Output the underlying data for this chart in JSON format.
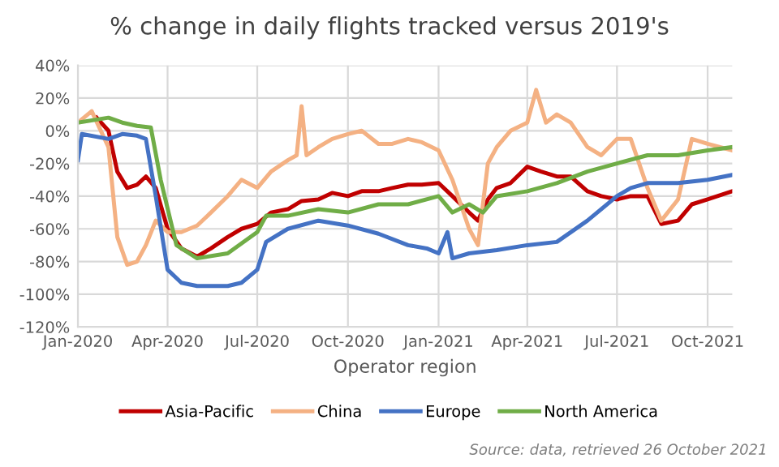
{
  "chart_data": {
    "type": "line",
    "title": "% change in daily flights tracked versus 2019's",
    "xlabel": "Operator region",
    "annotations": [
      "Source: data, retrieved 26 October 2021"
    ],
    "xlim": [
      "2020-01-01",
      "2021-10-26"
    ],
    "xticks": [
      {
        "value": "2020-01-01",
        "label": "Jan-2020"
      },
      {
        "value": "2020-04-01",
        "label": "Apr-2020"
      },
      {
        "value": "2020-07-01",
        "label": "Jul-2020"
      },
      {
        "value": "2020-10-01",
        "label": "Oct-2020"
      },
      {
        "value": "2021-01-01",
        "label": "Jan-2021"
      },
      {
        "value": "2021-04-01",
        "label": "Apr-2021"
      },
      {
        "value": "2021-07-01",
        "label": "Jul-2021"
      },
      {
        "value": "2021-10-01",
        "label": "Oct-2021"
      }
    ],
    "ylim": [
      -120,
      40
    ],
    "yticks": [
      {
        "value": 40,
        "label": "40%"
      },
      {
        "value": 20,
        "label": "20%"
      },
      {
        "value": 0,
        "label": "0%"
      },
      {
        "value": -20,
        "label": "-20%"
      },
      {
        "value": -40,
        "label": "-40%"
      },
      {
        "value": -60,
        "label": "-60%"
      },
      {
        "value": -80,
        "label": "-80%"
      },
      {
        "value": -100,
        "label": "-100%"
      },
      {
        "value": -120,
        "label": "-120%"
      }
    ],
    "grid": true,
    "legend": "bottom",
    "marker": "none",
    "line_style": "solid",
    "series": [
      {
        "name": "Asia-Pacific",
        "color": "#c00000",
        "x": [
          "2020-01-20",
          "2020-02-01",
          "2020-02-10",
          "2020-02-20",
          "2020-03-01",
          "2020-03-10",
          "2020-03-20",
          "2020-04-01",
          "2020-04-15",
          "2020-05-01",
          "2020-05-15",
          "2020-06-01",
          "2020-06-15",
          "2020-07-01",
          "2020-07-15",
          "2020-08-01",
          "2020-08-15",
          "2020-09-01",
          "2020-09-15",
          "2020-10-01",
          "2020-10-15",
          "2020-11-01",
          "2020-11-15",
          "2020-12-01",
          "2020-12-15",
          "2021-01-01",
          "2021-01-15",
          "2021-02-01",
          "2021-02-10",
          "2021-02-20",
          "2021-03-01",
          "2021-03-15",
          "2021-04-01",
          "2021-04-15",
          "2021-05-01",
          "2021-05-15",
          "2021-06-01",
          "2021-06-15",
          "2021-07-01",
          "2021-07-15",
          "2021-08-01",
          "2021-08-15",
          "2021-09-01",
          "2021-09-15",
          "2021-10-01",
          "2021-10-26"
        ],
        "values": [
          8,
          0,
          -25,
          -35,
          -33,
          -28,
          -35,
          -60,
          -72,
          -77,
          -72,
          -65,
          -60,
          -57,
          -50,
          -48,
          -43,
          -42,
          -38,
          -40,
          -37,
          -37,
          -35,
          -33,
          -33,
          -32,
          -40,
          -50,
          -55,
          -42,
          -35,
          -32,
          -22,
          -25,
          -28,
          -28,
          -37,
          -40,
          -42,
          -40,
          -40,
          -57,
          -55,
          -45,
          -42,
          -37
        ]
      },
      {
        "name": "China",
        "color": "#f4b183",
        "x": [
          "2020-01-01",
          "2020-01-15",
          "2020-02-01",
          "2020-02-10",
          "2020-02-20",
          "2020-03-01",
          "2020-03-10",
          "2020-03-20",
          "2020-04-01",
          "2020-04-15",
          "2020-05-01",
          "2020-05-15",
          "2020-06-01",
          "2020-06-15",
          "2020-07-01",
          "2020-07-15",
          "2020-08-01",
          "2020-08-10",
          "2020-08-15",
          "2020-08-20",
          "2020-09-01",
          "2020-09-15",
          "2020-10-01",
          "2020-10-15",
          "2020-11-01",
          "2020-11-15",
          "2020-12-01",
          "2020-12-15",
          "2021-01-01",
          "2021-01-15",
          "2021-02-01",
          "2021-02-10",
          "2021-02-20",
          "2021-03-01",
          "2021-03-15",
          "2021-04-01",
          "2021-04-10",
          "2021-04-20",
          "2021-05-01",
          "2021-05-15",
          "2021-06-01",
          "2021-06-15",
          "2021-07-01",
          "2021-07-15",
          "2021-08-01",
          "2021-08-15",
          "2021-09-01",
          "2021-09-15",
          "2021-10-01",
          "2021-10-26"
        ],
        "values": [
          5,
          12,
          -10,
          -65,
          -82,
          -80,
          -70,
          -55,
          -62,
          -62,
          -58,
          -50,
          -40,
          -30,
          -35,
          -25,
          -18,
          -15,
          15,
          -15,
          -10,
          -5,
          -2,
          0,
          -8,
          -8,
          -5,
          -7,
          -12,
          -30,
          -60,
          -70,
          -20,
          -10,
          0,
          5,
          25,
          5,
          10,
          5,
          -10,
          -15,
          -5,
          -5,
          -35,
          -55,
          -42,
          -5,
          -8,
          -12
        ]
      },
      {
        "name": "Europe",
        "color": "#4472c4",
        "x": [
          "2020-01-01",
          "2020-01-05",
          "2020-02-01",
          "2020-02-15",
          "2020-03-01",
          "2020-03-10",
          "2020-03-20",
          "2020-04-01",
          "2020-04-15",
          "2020-05-01",
          "2020-06-01",
          "2020-06-15",
          "2020-07-01",
          "2020-07-10",
          "2020-08-01",
          "2020-09-01",
          "2020-10-01",
          "2020-11-01",
          "2020-12-01",
          "2020-12-20",
          "2021-01-01",
          "2021-01-10",
          "2021-01-15",
          "2021-02-01",
          "2021-03-01",
          "2021-04-01",
          "2021-05-01",
          "2021-06-01",
          "2021-07-01",
          "2021-07-15",
          "2021-08-01",
          "2021-09-01",
          "2021-10-01",
          "2021-10-26"
        ],
        "values": [
          -18,
          -2,
          -5,
          -2,
          -3,
          -5,
          -40,
          -85,
          -93,
          -95,
          -95,
          -93,
          -85,
          -68,
          -60,
          -55,
          -58,
          -63,
          -70,
          -72,
          -75,
          -62,
          -78,
          -75,
          -73,
          -70,
          -68,
          -55,
          -40,
          -35,
          -32,
          -32,
          -30,
          -27
        ]
      },
      {
        "name": "North America",
        "color": "#70ad47",
        "x": [
          "2020-01-01",
          "2020-02-01",
          "2020-02-15",
          "2020-03-01",
          "2020-03-15",
          "2020-03-25",
          "2020-04-10",
          "2020-05-01",
          "2020-06-01",
          "2020-07-01",
          "2020-07-10",
          "2020-08-01",
          "2020-09-01",
          "2020-10-01",
          "2020-11-01",
          "2020-12-01",
          "2021-01-01",
          "2021-01-15",
          "2021-02-01",
          "2021-02-15",
          "2021-03-01",
          "2021-04-01",
          "2021-05-01",
          "2021-06-01",
          "2021-07-01",
          "2021-08-01",
          "2021-09-01",
          "2021-10-01",
          "2021-10-26"
        ],
        "values": [
          5,
          8,
          5,
          3,
          2,
          -30,
          -70,
          -78,
          -75,
          -62,
          -52,
          -52,
          -48,
          -50,
          -45,
          -45,
          -40,
          -50,
          -45,
          -50,
          -40,
          -37,
          -32,
          -25,
          -20,
          -15,
          -15,
          -12,
          -10
        ]
      }
    ]
  }
}
